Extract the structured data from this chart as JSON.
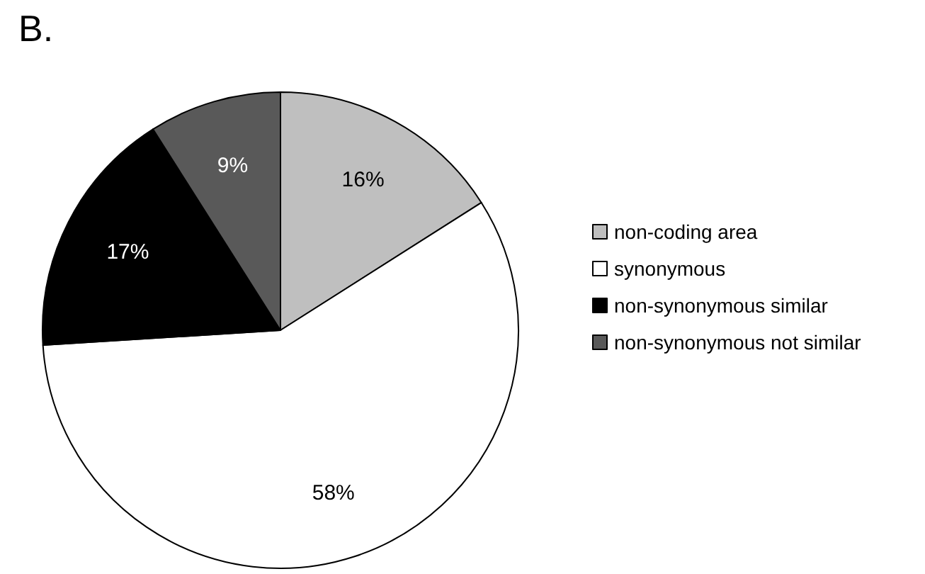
{
  "chart_data": {
    "type": "pie",
    "title": "B.",
    "categories": [
      "non-coding area",
      "synonymous",
      "non-synonymous similar",
      "non-synonymous not similar"
    ],
    "values": [
      16,
      58,
      17,
      9
    ],
    "colors": [
      "#bfbfbf",
      "#ffffff",
      "#000000",
      "#595959"
    ],
    "value_labels": [
      "16%",
      "58%",
      "17%",
      "9%"
    ],
    "legend": "right"
  }
}
